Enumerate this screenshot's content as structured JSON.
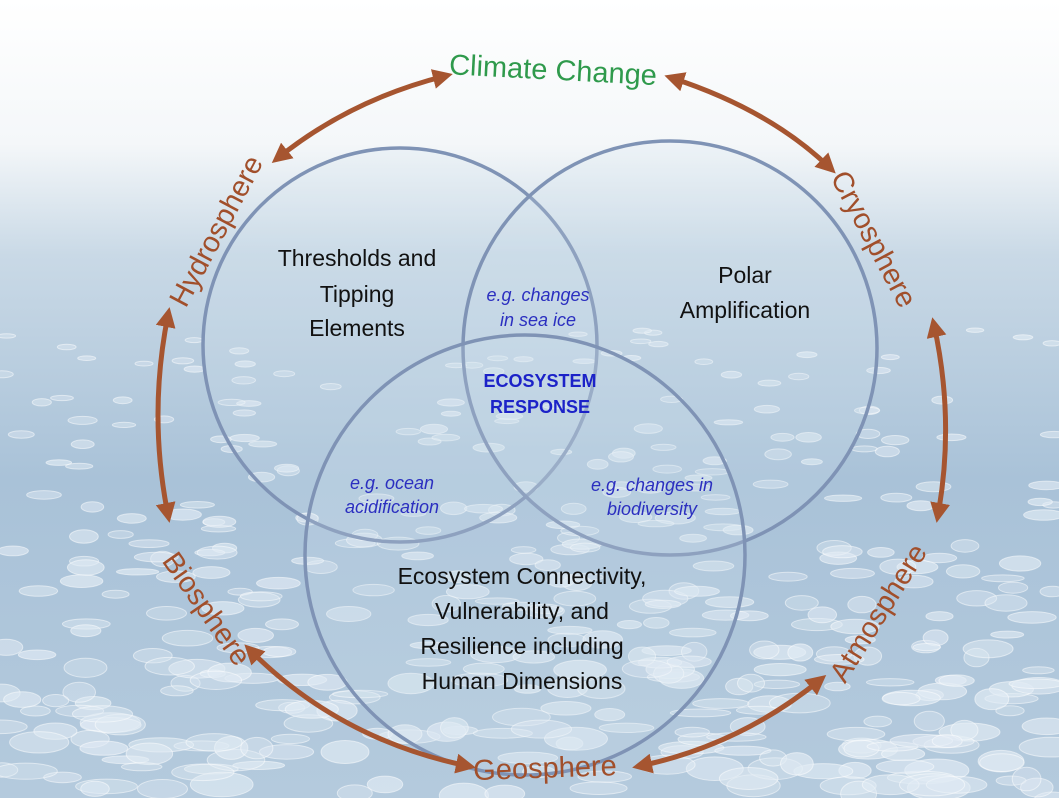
{
  "cycle": {
    "top": "Climate Change",
    "spheres": [
      "Cryosphere",
      "Atmosphere",
      "Geosphere",
      "Biosphere",
      "Hydrosphere"
    ]
  },
  "circles": [
    {
      "lines": [
        "Thresholds and",
        "Tipping",
        "Elements"
      ]
    },
    {
      "lines": [
        "Polar",
        "Amplification"
      ]
    },
    {
      "lines": [
        "Ecosystem Connectivity,",
        "Vulnerability, and",
        "Resilience including",
        "Human Dimensions"
      ]
    }
  ],
  "overlaps": [
    {
      "lines": [
        "e.g. changes",
        "in sea ice"
      ]
    },
    {
      "lines": [
        "e.g. ocean",
        "acidification"
      ]
    },
    {
      "lines": [
        "e.g. changes in",
        "biodiversity"
      ]
    }
  ],
  "center": {
    "lines": [
      "ECOSYSTEM",
      "RESPONSE"
    ]
  }
}
